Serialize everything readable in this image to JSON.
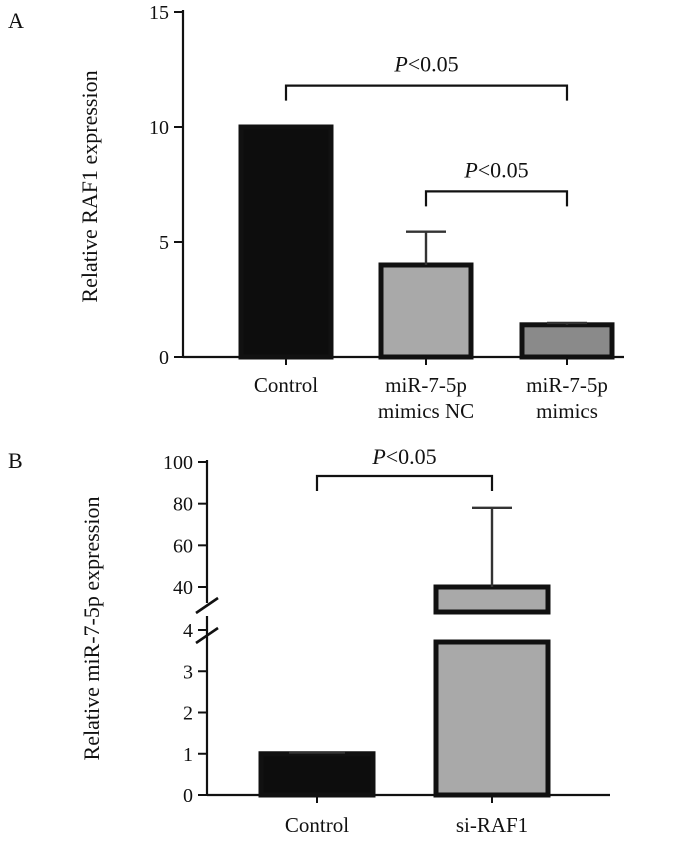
{
  "chart_data": [
    {
      "type": "bar",
      "panel_label": "A",
      "ylabel": "Relative RAF1 expression",
      "ylim": [
        0,
        15
      ],
      "yticks": [
        0,
        5,
        10,
        15
      ],
      "categories": [
        "Control",
        "miR-7-5p mimics NC",
        "miR-7-5p mimics"
      ],
      "category_lines": [
        [
          "Control"
        ],
        [
          "miR-7-5p",
          "mimics NC"
        ],
        [
          "miR-7-5p",
          "mimics"
        ]
      ],
      "values": [
        10,
        4,
        1.4
      ],
      "errors": [
        0,
        1.45,
        0.08
      ],
      "colors": [
        "#0d0d0d",
        "#a9a9a9",
        "#8a8a8a"
      ],
      "significance": [
        {
          "from": 0,
          "to": 2,
          "p_italic": "P",
          "p_rest": "<0.05",
          "y": 11.8
        },
        {
          "from": 1,
          "to": 2,
          "p_italic": "P",
          "p_rest": "<0.05",
          "y": 7.2
        }
      ]
    },
    {
      "type": "bar",
      "panel_label": "B",
      "ylabel": "Relative miR-7-5p expression",
      "broken_axis": true,
      "lower_ylim": [
        0,
        4
      ],
      "upper_ylim": [
        40,
        100
      ],
      "lower_yticks": [
        0,
        1,
        2,
        3,
        4
      ],
      "upper_yticks": [
        40,
        60,
        80,
        100
      ],
      "categories": [
        "Control",
        "si-RAF1"
      ],
      "values": [
        1.0,
        40
      ],
      "errors": [
        0.03,
        38
      ],
      "colors": [
        "#0d0d0d",
        "#a9a9a9"
      ],
      "significance": [
        {
          "from": 0,
          "to": 1,
          "p_italic": "P",
          "p_rest": "<0.05",
          "y": 92
        }
      ]
    }
  ]
}
